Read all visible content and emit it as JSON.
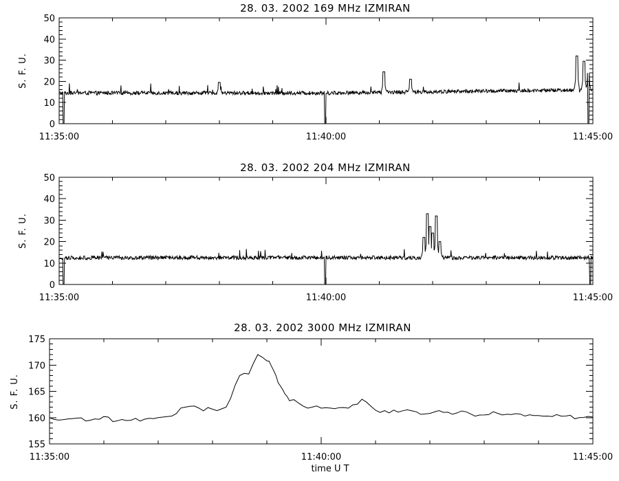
{
  "chart_data": [
    {
      "type": "line",
      "title": "28.  03.  2002    169  MHz    IZMIRAN",
      "ylabel": "S. F. U.",
      "xlabel": "",
      "ylim": [
        0,
        50
      ],
      "yticks": [
        0,
        10,
        20,
        30,
        40,
        50
      ],
      "xlim_seconds": [
        0,
        600
      ],
      "xtick_labels": [
        "11:35:00",
        "11:40:00",
        "11:45:00"
      ],
      "baseline": 14.5,
      "baseline_end": 16,
      "dips_to_zero_at": [
        "11:35:05",
        "11:39:59",
        "11:44:55"
      ],
      "peaks": [
        {
          "time": "11:38:00",
          "value": 19.5
        },
        {
          "time": "11:41:05",
          "value": 24.5
        },
        {
          "time": "11:41:35",
          "value": 21
        },
        {
          "time": "11:44:42",
          "value": 32
        },
        {
          "time": "11:44:50",
          "value": 29.5
        },
        {
          "time": "11:44:55",
          "value": 24
        }
      ]
    },
    {
      "type": "line",
      "title": "28.  03.  2002    204  MHz    IZMIRAN",
      "ylabel": "S. F. U.",
      "xlabel": "",
      "ylim": [
        0,
        50
      ],
      "yticks": [
        0,
        10,
        20,
        30,
        40,
        50
      ],
      "xlim_seconds": [
        0,
        600
      ],
      "xtick_labels": [
        "11:35:00",
        "11:40:00",
        "11:45:00"
      ],
      "baseline": 12.5,
      "dips_to_zero_at": [
        "11:35:05",
        "11:39:59",
        "11:44:57"
      ],
      "peaks": [
        {
          "time": "11:41:50",
          "value": 22
        },
        {
          "time": "11:41:54",
          "value": 33
        },
        {
          "time": "11:41:57",
          "value": 27
        },
        {
          "time": "11:42:00",
          "value": 24
        },
        {
          "time": "11:42:04",
          "value": 32
        },
        {
          "time": "11:42:08",
          "value": 20
        }
      ]
    },
    {
      "type": "line",
      "title": "28.  03.  2002    3000  MHz    IZMIRAN",
      "ylabel": "S. F. U.",
      "xlabel": "time   U  T",
      "ylim": [
        155,
        175
      ],
      "yticks": [
        155,
        160,
        165,
        170,
        175
      ],
      "xlim_seconds": [
        0,
        600
      ],
      "xtick_labels": [
        "11:35:00",
        "11:40:00",
        "11:45:00"
      ],
      "x_seconds": [
        0,
        15,
        30,
        45,
        60,
        75,
        90,
        105,
        120,
        135,
        150,
        165,
        180,
        195,
        210,
        220,
        230,
        240,
        245,
        250,
        255,
        260,
        265,
        270,
        280,
        290,
        300,
        315,
        330,
        345,
        360,
        375,
        390,
        405,
        420,
        435,
        450,
        465,
        480,
        495,
        510,
        525,
        540,
        555,
        570,
        585,
        600
      ],
      "values": [
        160.0,
        159.6,
        159.9,
        159.5,
        160.2,
        159.4,
        159.5,
        159.7,
        160.0,
        160.3,
        162.0,
        161.8,
        161.6,
        162.0,
        168.0,
        168.3,
        172.0,
        170.8,
        169.8,
        168.0,
        166.0,
        164.5,
        163.2,
        163.4,
        162.2,
        162.0,
        161.8,
        161.7,
        161.8,
        163.5,
        161.4,
        160.9,
        161.3,
        161.1,
        160.8,
        161.0,
        160.9,
        160.7,
        160.5,
        160.8,
        160.6,
        160.3,
        160.4,
        160.2,
        160.3,
        160.0,
        160.1
      ]
    }
  ]
}
